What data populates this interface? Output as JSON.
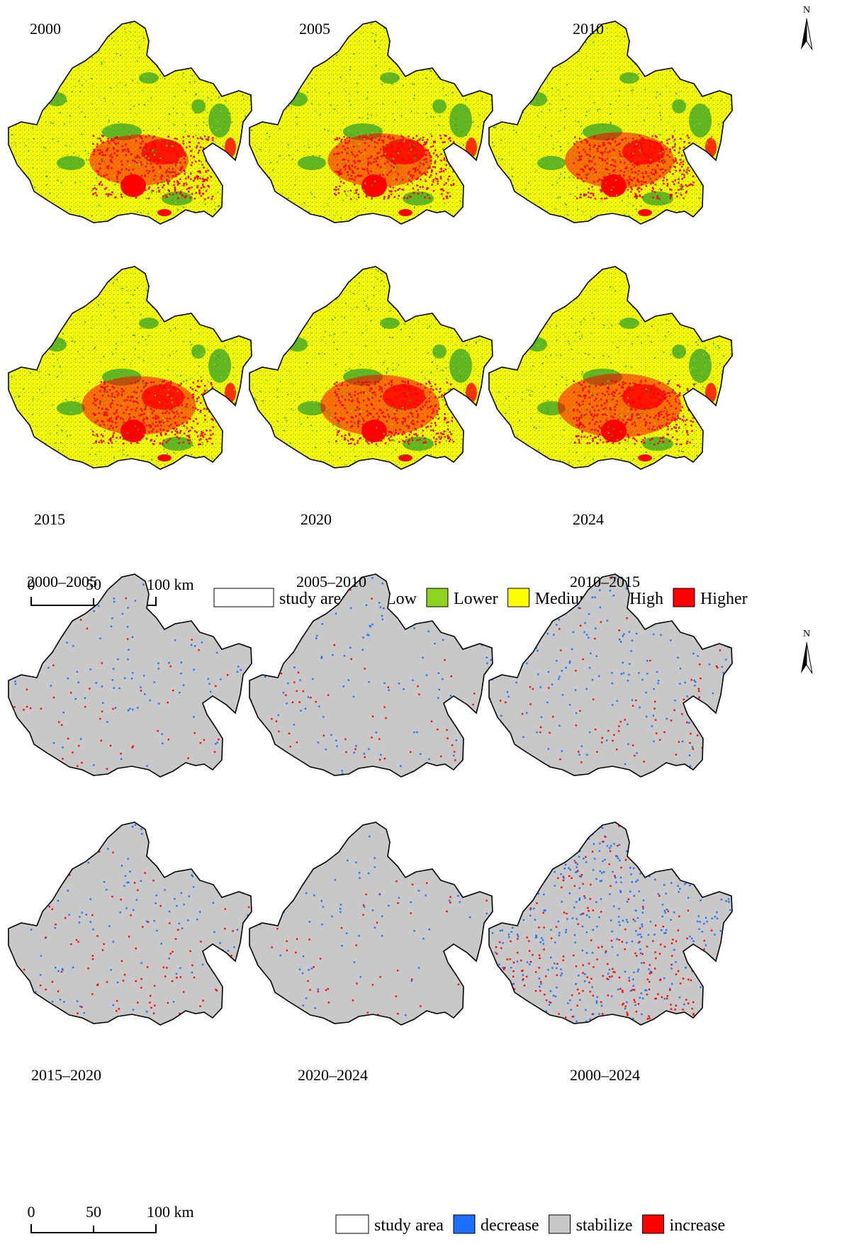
{
  "top": {
    "panels": [
      {
        "label": "2000",
        "theme": "level",
        "variant": 0
      },
      {
        "label": "2005",
        "theme": "level",
        "variant": 1
      },
      {
        "label": "2010",
        "theme": "level",
        "variant": 2
      },
      {
        "label": "2015",
        "theme": "level",
        "variant": 3
      },
      {
        "label": "2020",
        "theme": "level",
        "variant": 4
      },
      {
        "label": "2024",
        "theme": "level",
        "variant": 5
      }
    ],
    "north_label": "N",
    "scale": {
      "ticks": [
        "0",
        "50",
        "100 km"
      ]
    },
    "legend": [
      {
        "name": "study area",
        "color": "#ffffff"
      },
      {
        "name": "Low",
        "color": "#33a02c"
      },
      {
        "name": "Lower",
        "color": "#8fd322"
      },
      {
        "name": "Medium",
        "color": "#ffff00"
      },
      {
        "name": "High",
        "color": "#ff7f00"
      },
      {
        "name": "Higher",
        "color": "#ff0000"
      }
    ]
  },
  "bottom": {
    "panels": [
      {
        "label": "2000–2005",
        "theme": "change",
        "intensity": 0.6
      },
      {
        "label": "2005–2010",
        "theme": "change",
        "intensity": 0.7
      },
      {
        "label": "2010–2015",
        "theme": "change",
        "intensity": 0.9
      },
      {
        "label": "2015–2020",
        "theme": "change",
        "intensity": 0.8
      },
      {
        "label": "2020–2024",
        "theme": "change",
        "intensity": 0.5
      },
      {
        "label": "2000–2024",
        "theme": "change",
        "intensity": 2.4
      }
    ],
    "north_label": "N",
    "scale": {
      "ticks": [
        "0",
        "50",
        "100 km"
      ]
    },
    "legend": [
      {
        "name": "study area",
        "color": "#ffffff"
      },
      {
        "name": "decrease",
        "color": "#1f6fff"
      },
      {
        "name": "stabilize",
        "color": "#c8c8c8"
      },
      {
        "name": "increase",
        "color": "#ff0000"
      }
    ]
  },
  "colors": {
    "stabilize": "#c8c8c8",
    "decrease": "#1f6fff",
    "increase": "#ff0000",
    "medium": "#ffff00",
    "lower": "#8fd322",
    "low": "#33a02c",
    "higher": "#ff0000"
  }
}
